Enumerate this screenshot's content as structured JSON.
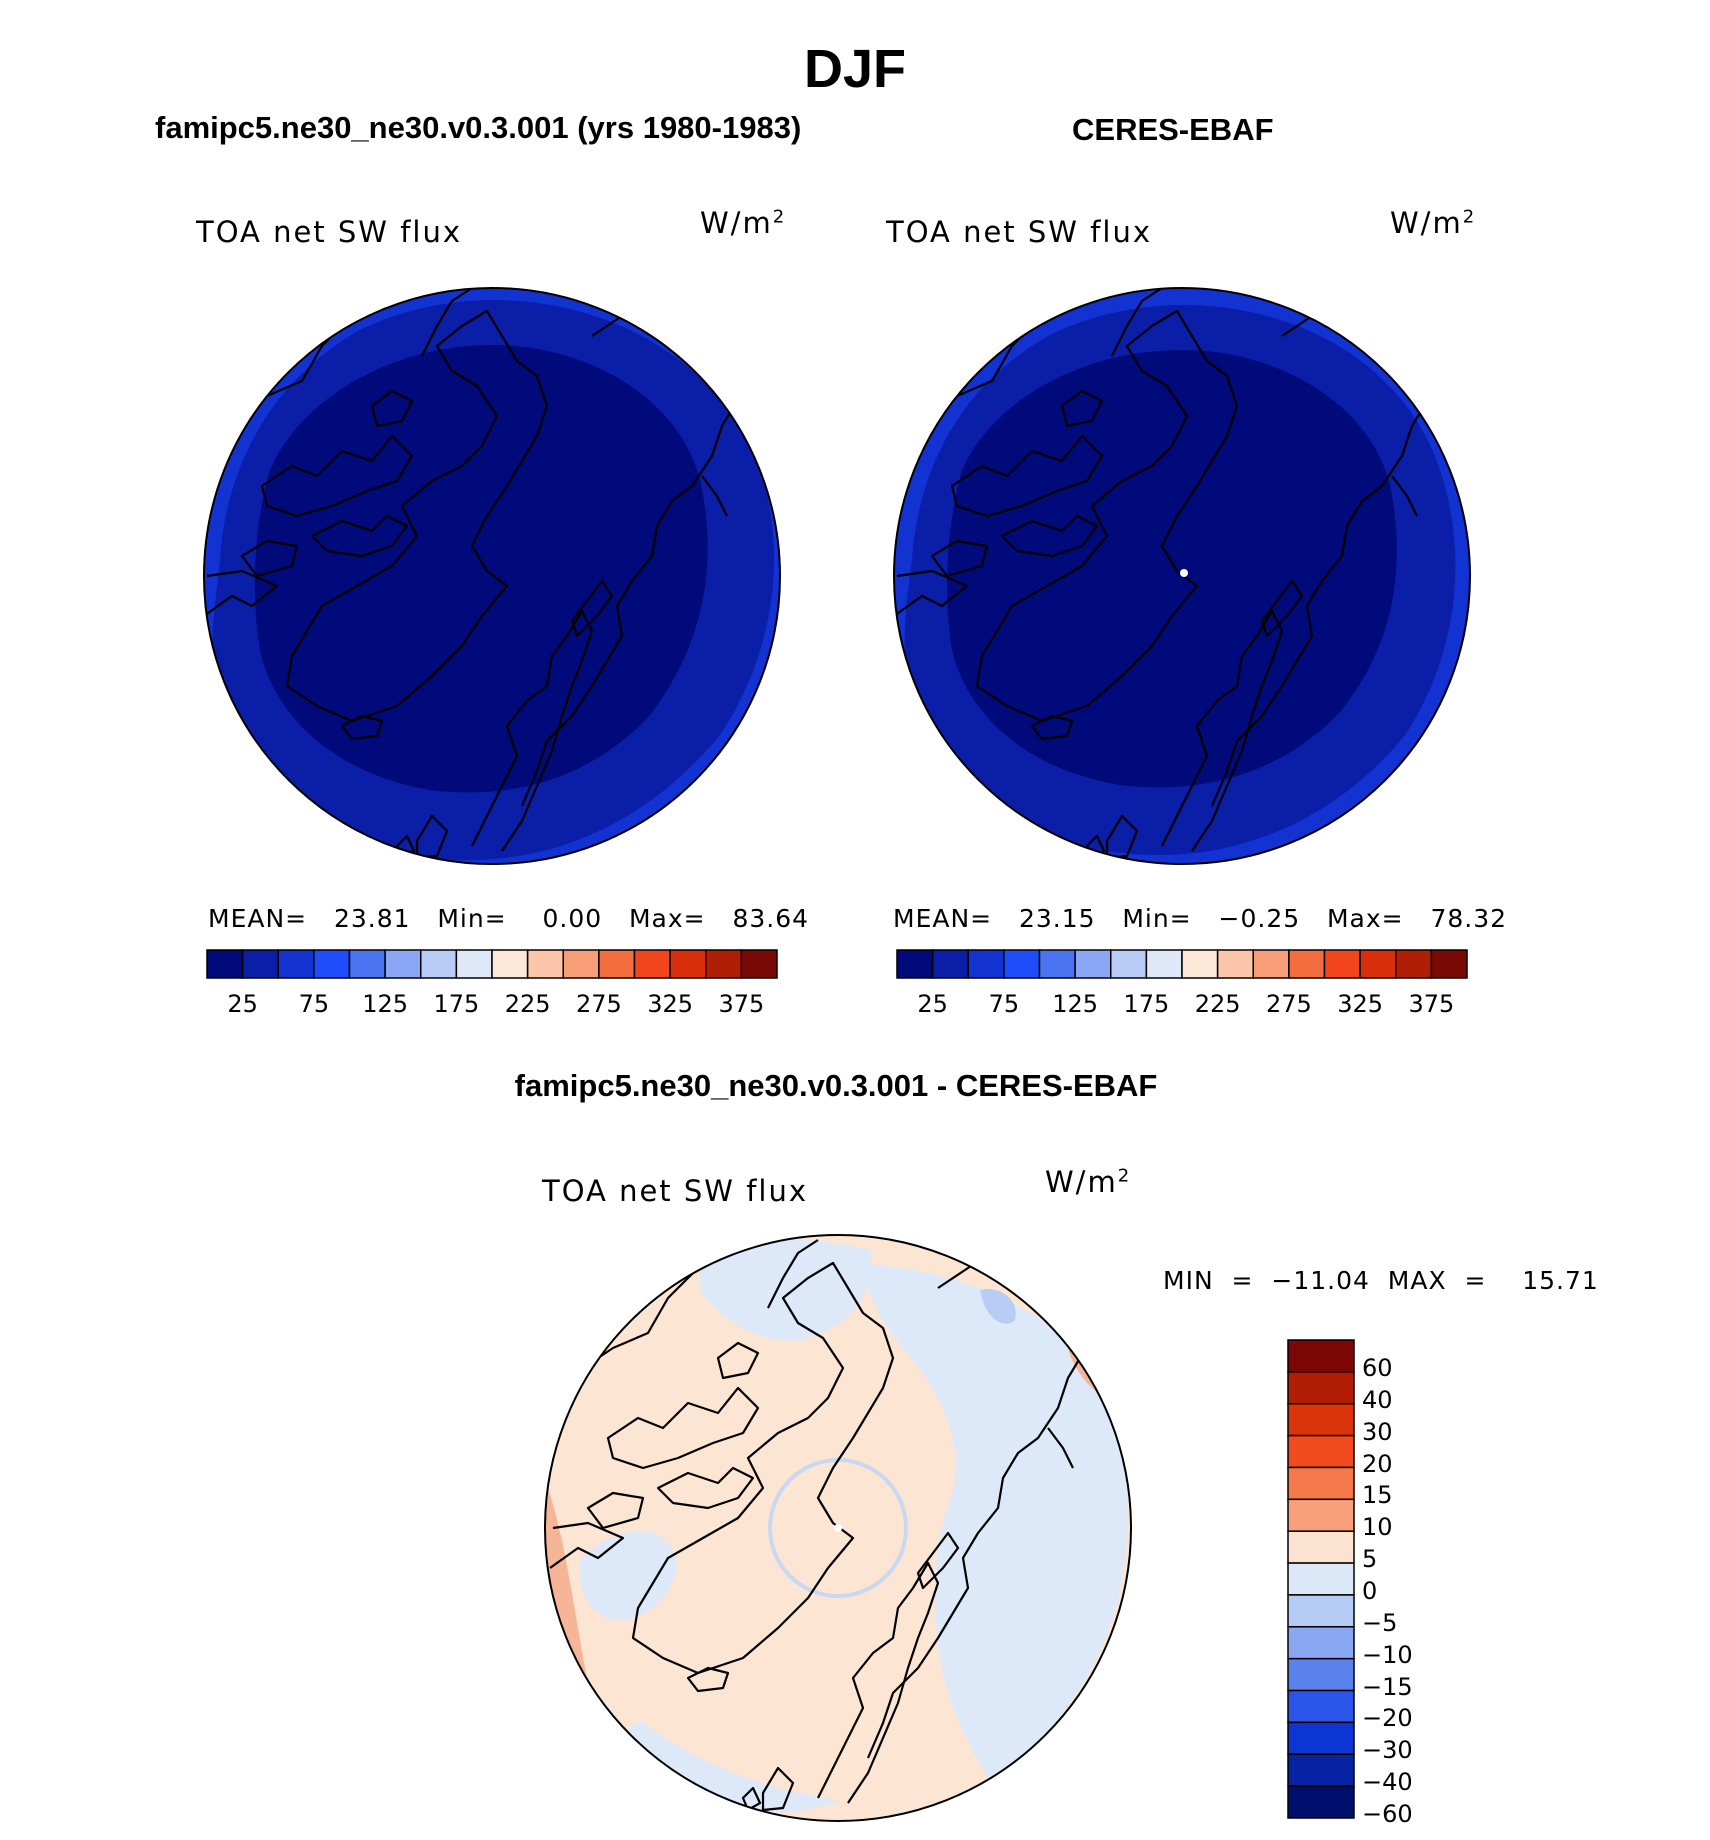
{
  "figure": {
    "season": "DJF",
    "model_title": "famipc5.ne30_ne30.v0.3.001 (yrs 1980-1983)",
    "obs_title": "CERES-EBAF",
    "diff_title": "famipc5.ne30_ne30.v0.3.001 - CERES-EBAF"
  },
  "panels": {
    "model": {
      "variable": "TOA net SW flux",
      "units": "W/m",
      "units_sup": "2",
      "stats": "MEAN=   23.81   Min=    0.00   Max=   83.64"
    },
    "obs": {
      "variable": "TOA net SW flux",
      "units": "W/m",
      "units_sup": "2",
      "stats": "MEAN=   23.15   Min=   −0.25   Max=   78.32"
    },
    "diff": {
      "variable": "TOA net SW flux",
      "units": "W/m",
      "units_sup": "2",
      "stats": "MIN  =  −11.04  MAX  =    15.71"
    }
  },
  "colorbars": {
    "abs_ticks": [
      "25",
      "75",
      "125",
      "175",
      "225",
      "275",
      "325",
      "375"
    ],
    "abs_colors": [
      "#000a7a",
      "#0a1ea8",
      "#1232d2",
      "#1f4dfa",
      "#4a74f2",
      "#8aa7f5",
      "#b9ccf7",
      "#dfe8f8",
      "#fde7d6",
      "#fbc6a9",
      "#f79e78",
      "#f26c3d",
      "#f2451e",
      "#d92e0b",
      "#b01e05",
      "#7a0a06"
    ],
    "diff_ticks": [
      "60",
      "40",
      "30",
      "20",
      "15",
      "10",
      "5",
      "0",
      "−5",
      "−10",
      "−15",
      "−20",
      "−30",
      "−40",
      "−60"
    ],
    "diff_colors": [
      "#7d0707",
      "#b11e05",
      "#d9340b",
      "#f24b1f",
      "#f5794a",
      "#f8a07c",
      "#fce2d1",
      "#dbe8f8",
      "#b4cbf5",
      "#89a7f2",
      "#5a82ec",
      "#2b55e8",
      "#0d35d3",
      "#0723a3",
      "#000f6e"
    ]
  },
  "map_colors": {
    "abs_center": "#000a7a",
    "abs_ring": "#0a1ea8",
    "abs_outer": "#1232d2",
    "diff_light_red": "#fde5d4",
    "diff_mid_red": "#f7b598",
    "diff_light_blue": "#dde9f8",
    "diff_mid_blue": "#b8cdf6"
  }
}
